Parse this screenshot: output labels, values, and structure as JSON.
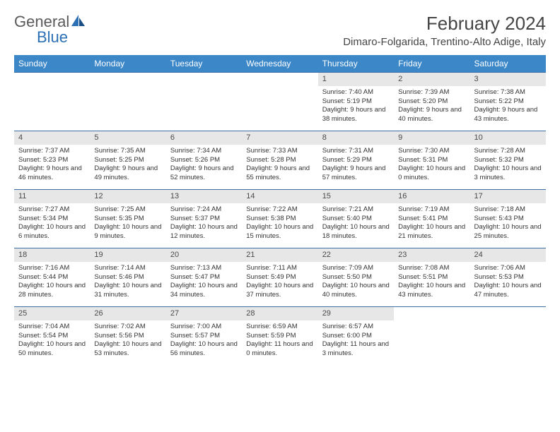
{
  "logo": {
    "part1": "General",
    "part2": "Blue"
  },
  "title": "February 2024",
  "location": "Dimaro-Folgarida, Trentino-Alto Adige, Italy",
  "colors": {
    "header_bg": "#3b87c8",
    "header_text": "#ffffff",
    "daybar_bg": "#e7e7e7",
    "border": "#3b6fa5",
    "logo_gray": "#5a5a5a",
    "logo_blue": "#2b6fb5",
    "text": "#333333"
  },
  "fonts": {
    "title_size": 26,
    "location_size": 15,
    "weekday_size": 12,
    "daynum_size": 11,
    "body_size": 9.5
  },
  "weekdays": [
    "Sunday",
    "Monday",
    "Tuesday",
    "Wednesday",
    "Thursday",
    "Friday",
    "Saturday"
  ],
  "weeks": [
    [
      {
        "n": "",
        "sunrise": "",
        "sunset": "",
        "daylight": ""
      },
      {
        "n": "",
        "sunrise": "",
        "sunset": "",
        "daylight": ""
      },
      {
        "n": "",
        "sunrise": "",
        "sunset": "",
        "daylight": ""
      },
      {
        "n": "",
        "sunrise": "",
        "sunset": "",
        "daylight": ""
      },
      {
        "n": "1",
        "sunrise": "Sunrise: 7:40 AM",
        "sunset": "Sunset: 5:19 PM",
        "daylight": "Daylight: 9 hours and 38 minutes."
      },
      {
        "n": "2",
        "sunrise": "Sunrise: 7:39 AM",
        "sunset": "Sunset: 5:20 PM",
        "daylight": "Daylight: 9 hours and 40 minutes."
      },
      {
        "n": "3",
        "sunrise": "Sunrise: 7:38 AM",
        "sunset": "Sunset: 5:22 PM",
        "daylight": "Daylight: 9 hours and 43 minutes."
      }
    ],
    [
      {
        "n": "4",
        "sunrise": "Sunrise: 7:37 AM",
        "sunset": "Sunset: 5:23 PM",
        "daylight": "Daylight: 9 hours and 46 minutes."
      },
      {
        "n": "5",
        "sunrise": "Sunrise: 7:35 AM",
        "sunset": "Sunset: 5:25 PM",
        "daylight": "Daylight: 9 hours and 49 minutes."
      },
      {
        "n": "6",
        "sunrise": "Sunrise: 7:34 AM",
        "sunset": "Sunset: 5:26 PM",
        "daylight": "Daylight: 9 hours and 52 minutes."
      },
      {
        "n": "7",
        "sunrise": "Sunrise: 7:33 AM",
        "sunset": "Sunset: 5:28 PM",
        "daylight": "Daylight: 9 hours and 55 minutes."
      },
      {
        "n": "8",
        "sunrise": "Sunrise: 7:31 AM",
        "sunset": "Sunset: 5:29 PM",
        "daylight": "Daylight: 9 hours and 57 minutes."
      },
      {
        "n": "9",
        "sunrise": "Sunrise: 7:30 AM",
        "sunset": "Sunset: 5:31 PM",
        "daylight": "Daylight: 10 hours and 0 minutes."
      },
      {
        "n": "10",
        "sunrise": "Sunrise: 7:28 AM",
        "sunset": "Sunset: 5:32 PM",
        "daylight": "Daylight: 10 hours and 3 minutes."
      }
    ],
    [
      {
        "n": "11",
        "sunrise": "Sunrise: 7:27 AM",
        "sunset": "Sunset: 5:34 PM",
        "daylight": "Daylight: 10 hours and 6 minutes."
      },
      {
        "n": "12",
        "sunrise": "Sunrise: 7:25 AM",
        "sunset": "Sunset: 5:35 PM",
        "daylight": "Daylight: 10 hours and 9 minutes."
      },
      {
        "n": "13",
        "sunrise": "Sunrise: 7:24 AM",
        "sunset": "Sunset: 5:37 PM",
        "daylight": "Daylight: 10 hours and 12 minutes."
      },
      {
        "n": "14",
        "sunrise": "Sunrise: 7:22 AM",
        "sunset": "Sunset: 5:38 PM",
        "daylight": "Daylight: 10 hours and 15 minutes."
      },
      {
        "n": "15",
        "sunrise": "Sunrise: 7:21 AM",
        "sunset": "Sunset: 5:40 PM",
        "daylight": "Daylight: 10 hours and 18 minutes."
      },
      {
        "n": "16",
        "sunrise": "Sunrise: 7:19 AM",
        "sunset": "Sunset: 5:41 PM",
        "daylight": "Daylight: 10 hours and 21 minutes."
      },
      {
        "n": "17",
        "sunrise": "Sunrise: 7:18 AM",
        "sunset": "Sunset: 5:43 PM",
        "daylight": "Daylight: 10 hours and 25 minutes."
      }
    ],
    [
      {
        "n": "18",
        "sunrise": "Sunrise: 7:16 AM",
        "sunset": "Sunset: 5:44 PM",
        "daylight": "Daylight: 10 hours and 28 minutes."
      },
      {
        "n": "19",
        "sunrise": "Sunrise: 7:14 AM",
        "sunset": "Sunset: 5:46 PM",
        "daylight": "Daylight: 10 hours and 31 minutes."
      },
      {
        "n": "20",
        "sunrise": "Sunrise: 7:13 AM",
        "sunset": "Sunset: 5:47 PM",
        "daylight": "Daylight: 10 hours and 34 minutes."
      },
      {
        "n": "21",
        "sunrise": "Sunrise: 7:11 AM",
        "sunset": "Sunset: 5:49 PM",
        "daylight": "Daylight: 10 hours and 37 minutes."
      },
      {
        "n": "22",
        "sunrise": "Sunrise: 7:09 AM",
        "sunset": "Sunset: 5:50 PM",
        "daylight": "Daylight: 10 hours and 40 minutes."
      },
      {
        "n": "23",
        "sunrise": "Sunrise: 7:08 AM",
        "sunset": "Sunset: 5:51 PM",
        "daylight": "Daylight: 10 hours and 43 minutes."
      },
      {
        "n": "24",
        "sunrise": "Sunrise: 7:06 AM",
        "sunset": "Sunset: 5:53 PM",
        "daylight": "Daylight: 10 hours and 47 minutes."
      }
    ],
    [
      {
        "n": "25",
        "sunrise": "Sunrise: 7:04 AM",
        "sunset": "Sunset: 5:54 PM",
        "daylight": "Daylight: 10 hours and 50 minutes."
      },
      {
        "n": "26",
        "sunrise": "Sunrise: 7:02 AM",
        "sunset": "Sunset: 5:56 PM",
        "daylight": "Daylight: 10 hours and 53 minutes."
      },
      {
        "n": "27",
        "sunrise": "Sunrise: 7:00 AM",
        "sunset": "Sunset: 5:57 PM",
        "daylight": "Daylight: 10 hours and 56 minutes."
      },
      {
        "n": "28",
        "sunrise": "Sunrise: 6:59 AM",
        "sunset": "Sunset: 5:59 PM",
        "daylight": "Daylight: 11 hours and 0 minutes."
      },
      {
        "n": "29",
        "sunrise": "Sunrise: 6:57 AM",
        "sunset": "Sunset: 6:00 PM",
        "daylight": "Daylight: 11 hours and 3 minutes."
      },
      {
        "n": "",
        "sunrise": "",
        "sunset": "",
        "daylight": ""
      },
      {
        "n": "",
        "sunrise": "",
        "sunset": "",
        "daylight": ""
      }
    ]
  ]
}
